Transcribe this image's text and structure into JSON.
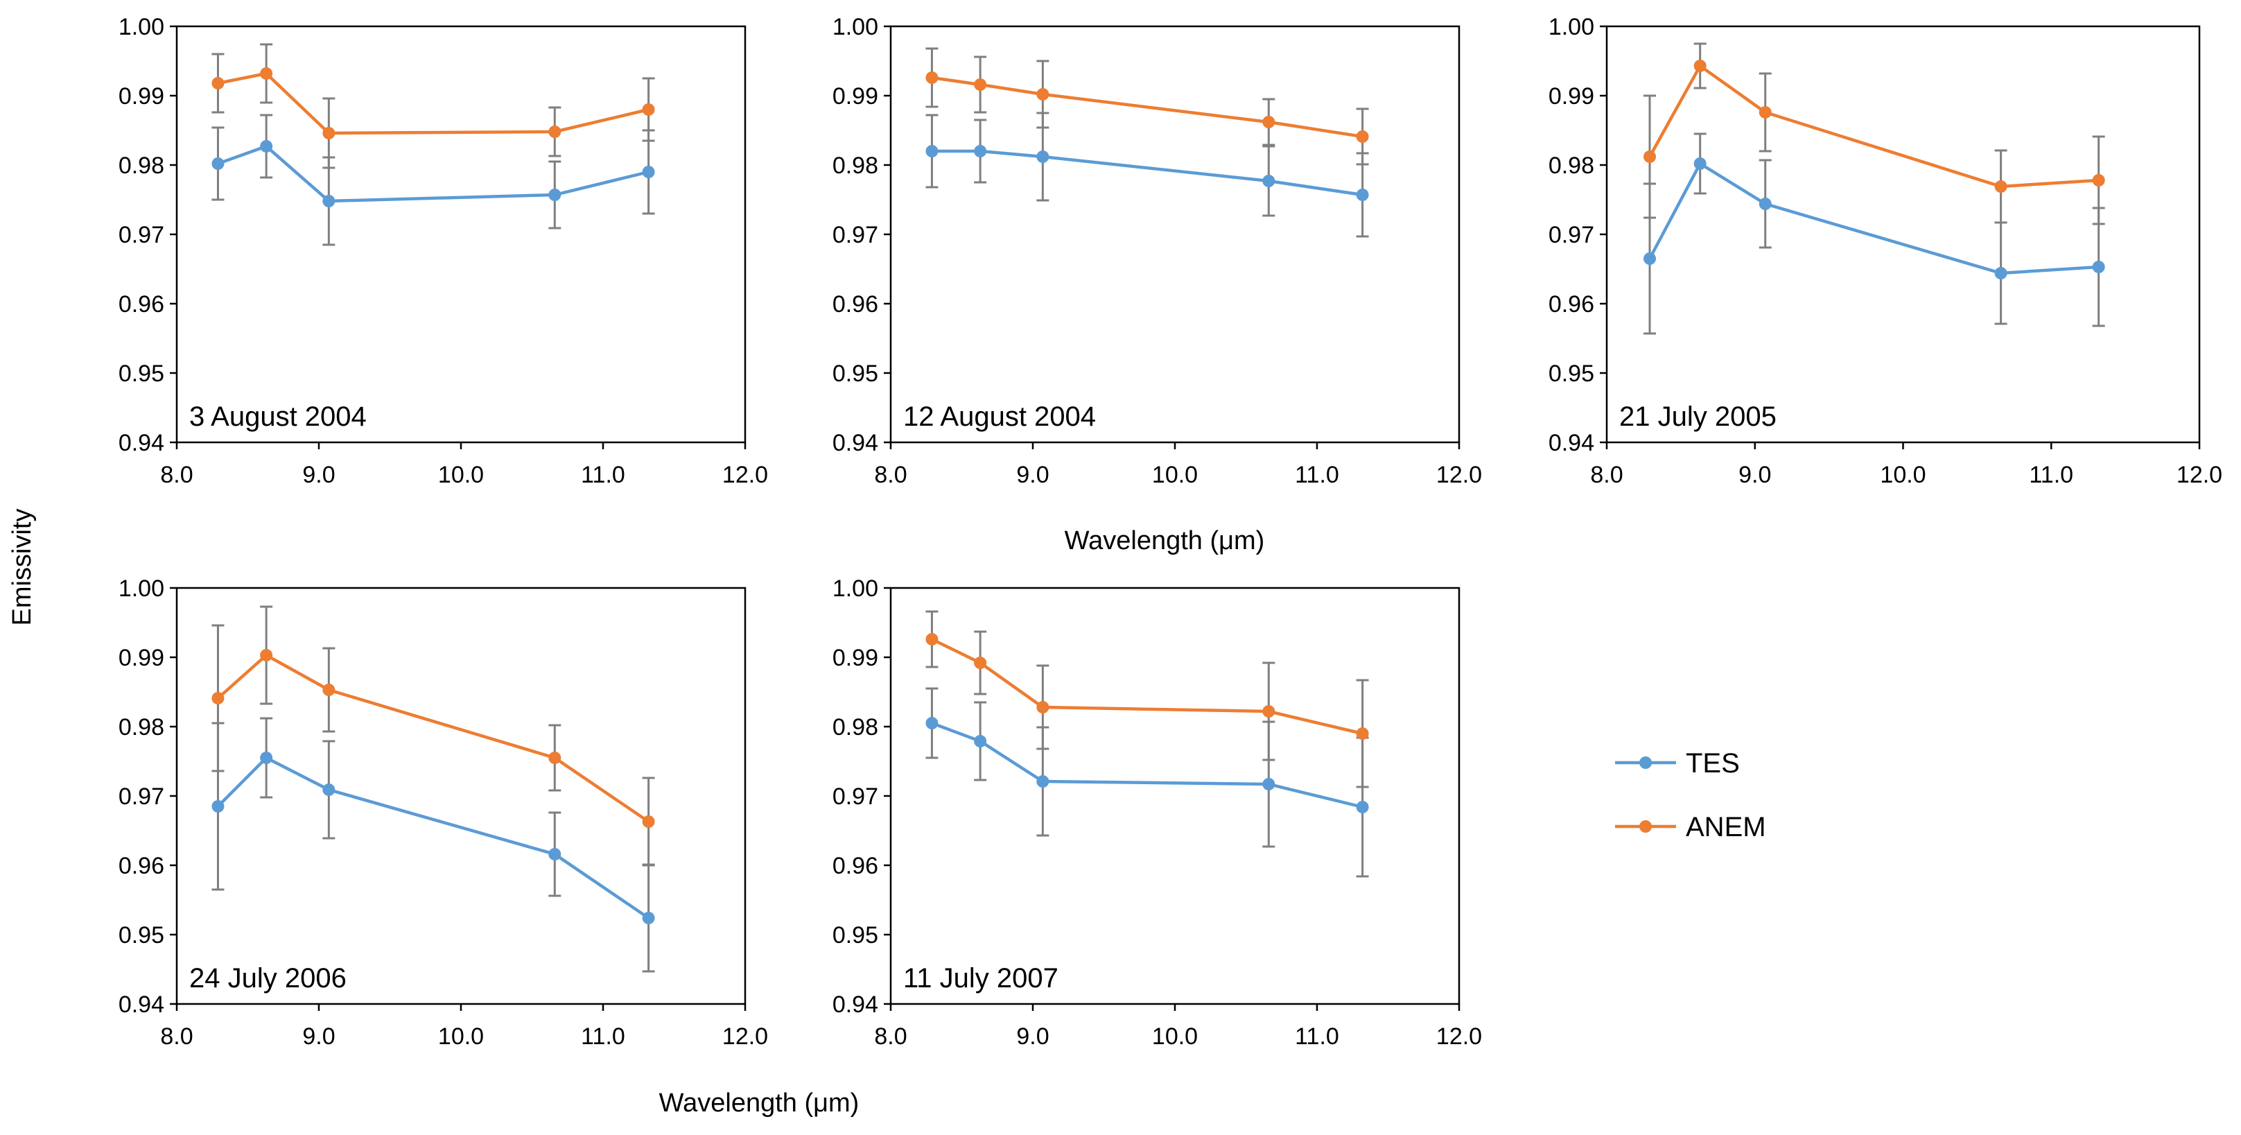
{
  "chart_data": {
    "type": "line",
    "ylabel": "Emissivity",
    "xlabel": "Wavelength (μm)",
    "xlim": [
      8.0,
      12.0
    ],
    "ylim": [
      0.94,
      1.0
    ],
    "x_ticks": [
      "8.0",
      "9.0",
      "10.0",
      "11.0",
      "12.0"
    ],
    "y_ticks": [
      "0.94",
      "0.95",
      "0.96",
      "0.97",
      "0.98",
      "0.99",
      "1.00"
    ],
    "x": [
      8.29,
      8.63,
      9.07,
      10.66,
      11.32
    ],
    "grid": false,
    "legend": {
      "position": "right",
      "entries": [
        {
          "name": "TES",
          "color": "#5B9BD5"
        },
        {
          "name": "ANEM",
          "color": "#ED7D31"
        }
      ]
    },
    "panels": [
      {
        "title": "3 August 2004",
        "series": [
          {
            "name": "TES",
            "color": "#5B9BD5",
            "values": [
              0.9802,
              0.9827,
              0.9748,
              0.9757,
              0.979
            ],
            "err": [
              0.0052,
              0.0045,
              0.0063,
              0.0048,
              0.006
            ]
          },
          {
            "name": "ANEM",
            "color": "#ED7D31",
            "values": [
              0.9918,
              0.9932,
              0.9846,
              0.9848,
              0.988
            ],
            "err": [
              0.0042,
              0.0042,
              0.005,
              0.0035,
              0.0045
            ]
          }
        ]
      },
      {
        "title": "12 August 2004",
        "series": [
          {
            "name": "TES",
            "color": "#5B9BD5",
            "values": [
              0.982,
              0.982,
              0.9812,
              0.9777,
              0.9757
            ],
            "err": [
              0.0052,
              0.0045,
              0.0063,
              0.005,
              0.006
            ]
          },
          {
            "name": "ANEM",
            "color": "#ED7D31",
            "values": [
              0.9926,
              0.9916,
              0.9902,
              0.9862,
              0.9841
            ],
            "err": [
              0.0042,
              0.004,
              0.0048,
              0.0033,
              0.004
            ]
          }
        ]
      },
      {
        "title": "21 July 2005",
        "series": [
          {
            "name": "TES",
            "color": "#5B9BD5",
            "values": [
              0.9665,
              0.9802,
              0.9744,
              0.9644,
              0.9653
            ],
            "err": [
              0.0108,
              0.0043,
              0.0063,
              0.0073,
              0.0085
            ]
          },
          {
            "name": "ANEM",
            "color": "#ED7D31",
            "values": [
              0.9812,
              0.9943,
              0.9876,
              0.9769,
              0.9778
            ],
            "err": [
              0.0088,
              0.0032,
              0.0056,
              0.0052,
              0.0063
            ]
          }
        ]
      },
      {
        "title": "24 July 2006",
        "series": [
          {
            "name": "TES",
            "color": "#5B9BD5",
            "values": [
              0.9685,
              0.9755,
              0.9709,
              0.9616,
              0.9524
            ],
            "err": [
              0.012,
              0.0057,
              0.007,
              0.006,
              0.0077
            ]
          },
          {
            "name": "ANEM",
            "color": "#ED7D31",
            "values": [
              0.9841,
              0.9903,
              0.9853,
              0.9755,
              0.9663
            ],
            "err": [
              0.0105,
              0.007,
              0.006,
              0.0047,
              0.0063
            ]
          }
        ]
      },
      {
        "title": "11 July 2007",
        "series": [
          {
            "name": "TES",
            "color": "#5B9BD5",
            "values": [
              0.9805,
              0.9779,
              0.9721,
              0.9717,
              0.9684
            ],
            "err": [
              0.005,
              0.0056,
              0.0078,
              0.009,
              0.01
            ]
          },
          {
            "name": "ANEM",
            "color": "#ED7D31",
            "values": [
              0.9926,
              0.9892,
              0.9828,
              0.9822,
              0.979
            ],
            "err": [
              0.004,
              0.0045,
              0.006,
              0.007,
              0.0077
            ]
          }
        ]
      }
    ]
  }
}
